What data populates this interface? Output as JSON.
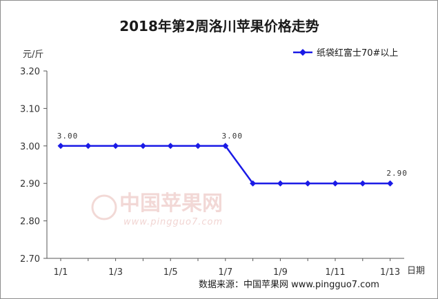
{
  "chart_data": {
    "type": "line",
    "title": "2018年第2周洛川苹果价格走势",
    "xlabel": "日期",
    "ylabel": "元/斤",
    "categories": [
      "1/1",
      "1/2",
      "1/3",
      "1/4",
      "1/5",
      "1/6",
      "1/7",
      "1/8",
      "1/9",
      "1/10",
      "1/11",
      "1/12",
      "1/13"
    ],
    "x_tick_labels": [
      "1/1",
      "1/3",
      "1/5",
      "1/7",
      "1/9",
      "1/11",
      "1/13"
    ],
    "y_tick_labels": [
      "3.20",
      "3.10",
      "3.00",
      "2.90",
      "2.80",
      "2.70"
    ],
    "ylim": [
      2.7,
      3.2
    ],
    "grid": false,
    "legend_position": "top-right",
    "series": [
      {
        "name": "纸袋红富士70#以上",
        "color": "#1a1ae6",
        "values": [
          3.0,
          3.0,
          3.0,
          3.0,
          3.0,
          3.0,
          3.0,
          2.9,
          2.9,
          2.9,
          2.9,
          2.9,
          2.9
        ]
      }
    ],
    "annotations": [
      {
        "index": 0,
        "text": "3.00"
      },
      {
        "index": 6,
        "text": "3.00"
      },
      {
        "index": 12,
        "text": "2.90"
      }
    ]
  },
  "source": "数据来源：中国苹果网 www.pingguo7.com",
  "watermark": {
    "main": "中国苹果网",
    "url": "www.pingguo7.com",
    "color": "#e8b9b5"
  }
}
